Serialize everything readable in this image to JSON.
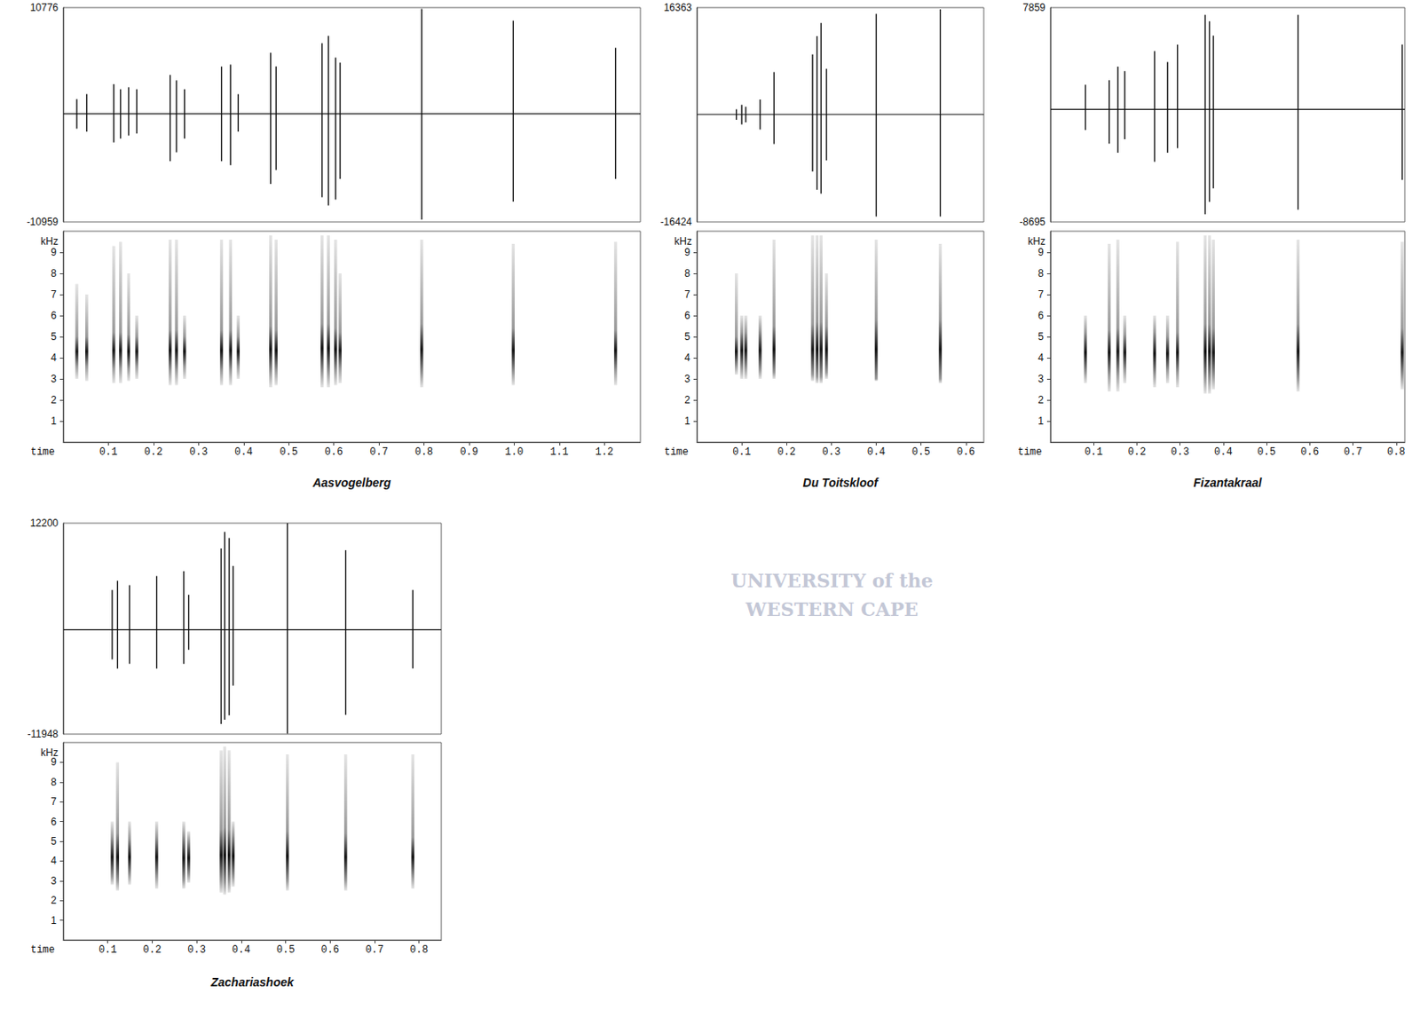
{
  "chart_data": [
    {
      "type": "spectrogram",
      "title": "Aasvogelberg",
      "xlabel": "time",
      "xlim": [
        0,
        1.28
      ],
      "xticks": [
        0.1,
        0.2,
        0.3,
        0.4,
        0.5,
        0.6,
        0.7,
        0.8,
        0.9,
        {
          "value": 1.0,
          "label": "1.0"
        },
        1.1,
        1.2
      ],
      "ylabel": "kHz",
      "ylim": [
        0,
        10
      ],
      "yticks": [
        1,
        2,
        3,
        4,
        5,
        6,
        7,
        8,
        9
      ],
      "amplitude_lim": [
        -10959,
        10776
      ],
      "amplitude_ticks": [
        -10959,
        10776
      ],
      "pulses": {
        "t": [
          0.03,
          0.052,
          0.112,
          0.127,
          0.145,
          0.163,
          0.237,
          0.251,
          0.269,
          0.351,
          0.371,
          0.388,
          0.46,
          0.472,
          0.574,
          0.588,
          0.604,
          0.614,
          0.795,
          0.998,
          1.225
        ],
        "amp_max": [
          1500,
          2000,
          3000,
          2500,
          2700,
          2500,
          3950,
          3400,
          2500,
          4800,
          5000,
          2000,
          6200,
          4800,
          7150,
          7900,
          5700,
          5200,
          10640,
          9450,
          6700
        ],
        "amp_min": [
          -1500,
          -1800,
          -2900,
          -2500,
          -2200,
          -2000,
          -4800,
          -3900,
          -2500,
          -4800,
          -5200,
          -1800,
          -7100,
          -5700,
          -8450,
          -9300,
          -8700,
          -6600,
          -10730,
          -8900,
          -6600
        ],
        "f_low": [
          3.0,
          2.9,
          2.8,
          2.8,
          2.9,
          3.0,
          2.7,
          2.7,
          3.0,
          2.7,
          2.7,
          3.0,
          2.6,
          2.7,
          2.6,
          2.6,
          2.7,
          2.8,
          2.6,
          2.7,
          2.7
        ],
        "f_high": [
          7.5,
          7.0,
          9.3,
          9.5,
          8.0,
          6.0,
          9.6,
          9.6,
          6.0,
          9.6,
          9.6,
          6.0,
          9.8,
          9.6,
          9.8,
          9.8,
          9.6,
          8.0,
          9.6,
          9.4,
          9.5
        ],
        "f_core_low": [
          3.6,
          3.6,
          3.5,
          3.5,
          3.5,
          3.6,
          3.4,
          3.4,
          3.6,
          3.4,
          3.4,
          3.6,
          3.3,
          3.4,
          3.3,
          3.3,
          3.4,
          3.5,
          3.2,
          3.3,
          3.4
        ],
        "f_core_high": [
          5.0,
          5.0,
          5.2,
          5.2,
          5.1,
          5.0,
          5.3,
          5.3,
          5.0,
          5.3,
          5.3,
          5.0,
          5.5,
          5.3,
          5.6,
          5.6,
          5.4,
          5.2,
          5.6,
          5.4,
          5.3
        ]
      }
    },
    {
      "type": "spectrogram",
      "title": "Du Toitskloof",
      "xlabel": "time",
      "xlim": [
        0,
        0.64
      ],
      "xticks": [
        0.1,
        0.2,
        0.3,
        0.4,
        0.5,
        0.6
      ],
      "ylabel": "kHz",
      "ylim": [
        0,
        10
      ],
      "yticks": [
        1,
        2,
        3,
        4,
        5,
        6,
        7,
        8,
        9
      ],
      "amplitude_lim": [
        -16424,
        16363
      ],
      "amplitude_ticks": [
        -16424,
        16363
      ],
      "annotations": [
        "UNIVERSITY of the",
        "WESTERN CAPE"
      ],
      "pulses": {
        "t": [
          0.088,
          0.1,
          0.109,
          0.141,
          0.172,
          0.258,
          0.268,
          0.277,
          0.289,
          0.4,
          0.543
        ],
        "amp_max": [
          800,
          1500,
          1200,
          2300,
          6500,
          9200,
          12000,
          14000,
          7000,
          15400,
          16100
        ],
        "amp_min": [
          -800,
          -1500,
          -1200,
          -2300,
          -4500,
          -8700,
          -11500,
          -12100,
          -7000,
          -15600,
          -15600
        ],
        "f_low": [
          3.2,
          3.0,
          3.0,
          3.0,
          3.0,
          2.9,
          2.8,
          2.8,
          3.0,
          2.9,
          2.8
        ],
        "f_high": [
          8.0,
          6.0,
          6.0,
          6.0,
          9.6,
          9.8,
          9.8,
          9.8,
          8.0,
          9.6,
          9.4
        ],
        "f_core_low": [
          3.6,
          3.5,
          3.5,
          3.4,
          3.3,
          3.2,
          3.1,
          3.1,
          3.3,
          3.0,
          3.0
        ],
        "f_core_high": [
          5.0,
          5.2,
          5.2,
          5.3,
          5.5,
          5.6,
          5.7,
          5.7,
          5.5,
          5.8,
          5.8
        ]
      }
    },
    {
      "type": "spectrogram",
      "title": "Fizantakraal",
      "xlabel": "time",
      "xlim": [
        0,
        0.82
      ],
      "xticks": [
        0.1,
        0.2,
        0.3,
        0.4,
        0.5,
        0.6,
        0.7,
        0.8
      ],
      "ylabel": "kHz",
      "ylim": [
        0,
        10
      ],
      "yticks": [
        1,
        2,
        3,
        4,
        5,
        6,
        7,
        8,
        9
      ],
      "amplitude_lim": [
        -8695,
        7859
      ],
      "amplitude_ticks": [
        -8695,
        7859
      ],
      "pulses": {
        "t": [
          0.081,
          0.136,
          0.156,
          0.172,
          0.241,
          0.271,
          0.294,
          0.358,
          0.368,
          0.377,
          0.573,
          0.814
        ],
        "amp_max": [
          1900,
          2250,
          3300,
          2950,
          4500,
          3650,
          5000,
          7300,
          6800,
          5700,
          7300,
          5000
        ],
        "amp_min": [
          -1600,
          -2650,
          -3350,
          -2300,
          -4050,
          -3350,
          -3000,
          -8100,
          -7150,
          -6100,
          -7750,
          -5450
        ],
        "f_low": [
          2.8,
          2.4,
          2.4,
          2.8,
          2.6,
          2.8,
          2.6,
          2.3,
          2.3,
          2.5,
          2.4,
          2.5
        ],
        "f_high": [
          6.0,
          9.4,
          9.6,
          6.0,
          6.0,
          6.0,
          9.5,
          9.8,
          9.8,
          9.6,
          9.6,
          9.5
        ],
        "f_core_low": [
          3.3,
          3.2,
          3.2,
          3.4,
          3.2,
          3.4,
          3.3,
          3.0,
          3.0,
          3.1,
          3.0,
          3.1
        ],
        "f_core_high": [
          5.2,
          5.3,
          5.4,
          5.1,
          5.2,
          5.0,
          5.2,
          5.6,
          5.6,
          5.4,
          5.6,
          5.4
        ]
      }
    },
    {
      "type": "spectrogram",
      "title": "Zachariashoek",
      "xlabel": "time",
      "xlim": [
        0,
        0.85
      ],
      "xticks": [
        0.1,
        0.2,
        0.3,
        0.4,
        0.5,
        0.6,
        0.7,
        0.8
      ],
      "ylabel": "kHz",
      "ylim": [
        0,
        10
      ],
      "yticks": [
        1,
        2,
        3,
        4,
        5,
        6,
        7,
        8,
        9
      ],
      "amplitude_lim": [
        -11948,
        12200
      ],
      "amplitude_ticks": [
        -11948,
        12200
      ],
      "pulses": {
        "t": [
          0.11,
          0.122,
          0.149,
          0.21,
          0.271,
          0.282,
          0.355,
          0.363,
          0.373,
          0.382,
          0.504,
          0.635,
          0.786
        ],
        "amp_max": [
          4550,
          5600,
          5100,
          6150,
          6700,
          4000,
          9300,
          11200,
          10500,
          7300,
          12200,
          9100,
          4550
        ],
        "amp_min": [
          -3400,
          -4450,
          -3900,
          -4450,
          -3900,
          -2300,
          -10800,
          -10300,
          -9800,
          -6400,
          -11900,
          -9750,
          -4450
        ],
        "f_low": [
          2.8,
          2.5,
          2.8,
          2.6,
          2.6,
          2.9,
          2.4,
          2.3,
          2.4,
          2.7,
          2.5,
          2.5,
          2.6
        ],
        "f_high": [
          6.0,
          9.0,
          6.0,
          6.0,
          6.0,
          5.5,
          9.6,
          9.8,
          9.6,
          6.0,
          9.4,
          9.4,
          9.4
        ],
        "f_core_low": [
          3.2,
          3.0,
          3.3,
          3.2,
          3.0,
          3.3,
          3.0,
          2.9,
          3.0,
          3.2,
          3.0,
          3.0,
          3.2
        ],
        "f_core_high": [
          5.2,
          5.4,
          5.1,
          5.2,
          5.3,
          5.0,
          5.6,
          5.7,
          5.6,
          5.3,
          5.5,
          5.4,
          5.2
        ]
      }
    }
  ]
}
